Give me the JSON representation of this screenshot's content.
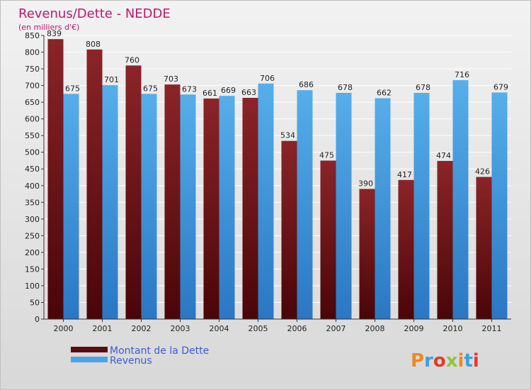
{
  "chart_data": {
    "type": "bar",
    "title": "Revenus/Dette - NEDDE",
    "subtitle": "(en milliers d'€)",
    "categories": [
      "2000",
      "2001",
      "2002",
      "2003",
      "2004",
      "2005",
      "2006",
      "2007",
      "2008",
      "2009",
      "2010",
      "2011"
    ],
    "series": [
      {
        "name": "Montant de la Dette",
        "values": [
          839,
          808,
          760,
          703,
          661,
          663,
          534,
          475,
          390,
          417,
          474,
          426
        ],
        "color": "#7a1a1f"
      },
      {
        "name": "Revenus",
        "values": [
          675,
          701,
          675,
          673,
          669,
          706,
          686,
          678,
          662,
          678,
          716,
          679
        ],
        "color": "#4ea3e6"
      }
    ],
    "ylim": [
      0,
      850
    ],
    "ytick_step": 50,
    "grid": true,
    "legend_position": "bottom-left"
  },
  "logo": {
    "text": "Proxiti"
  },
  "colors": {
    "title": "#c0186a",
    "legend_text": "#3d5bd8",
    "background": "#e6e6e6",
    "grid": "#ffffff"
  }
}
